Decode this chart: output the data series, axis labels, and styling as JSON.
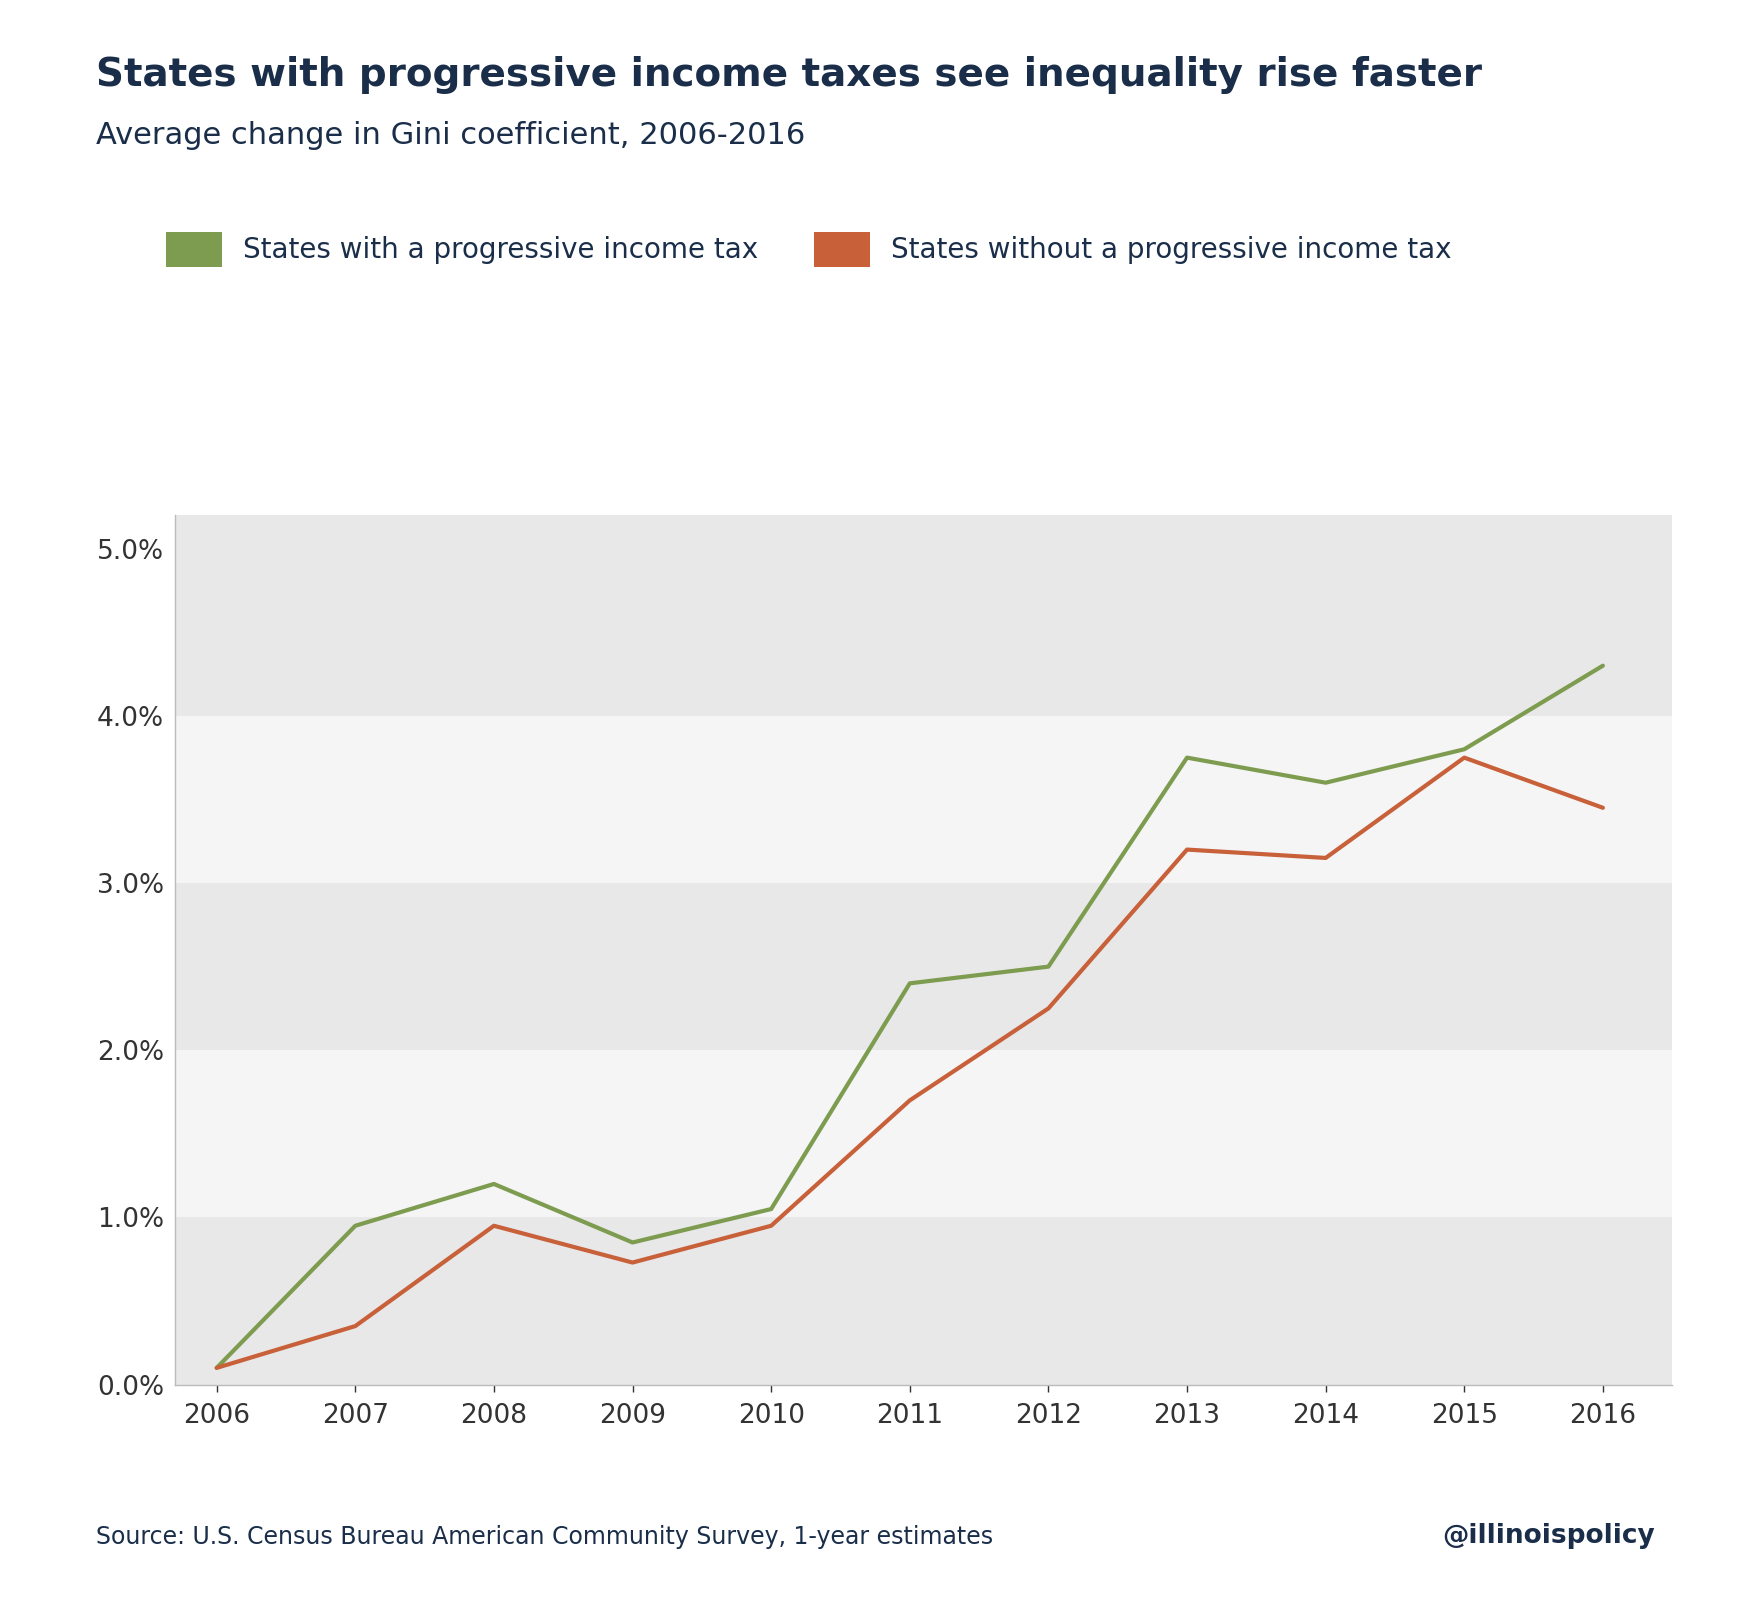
{
  "title": "States with progressive income taxes see inequality rise faster",
  "subtitle": "Average change in Gini coefficient, 2006-2016",
  "source": "Source: U.S. Census Bureau American Community Survey, 1-year estimates",
  "watermark": "@illinoispolicy",
  "years": [
    2006,
    2007,
    2008,
    2009,
    2010,
    2011,
    2012,
    2013,
    2014,
    2015,
    2016
  ],
  "progressive": [
    0.001,
    0.0095,
    0.012,
    0.0085,
    0.0105,
    0.024,
    0.025,
    0.0375,
    0.036,
    0.038,
    0.043
  ],
  "non_progressive": [
    0.001,
    0.0035,
    0.0095,
    0.0073,
    0.0095,
    0.017,
    0.0225,
    0.032,
    0.0315,
    0.0375,
    0.0345
  ],
  "progressive_color": "#7d9c50",
  "non_progressive_color": "#c8603a",
  "title_color": "#1a2e4a",
  "subtitle_color": "#1a2e4a",
  "source_color": "#1a2e4a",
  "axis_color": "#333333",
  "background_color": "#ffffff",
  "band_color_dark": "#e8e8e8",
  "band_color_light": "#f5f5f5",
  "legend_label_progressive": "States with a progressive income tax",
  "legend_label_non_progressive": "States without a progressive income tax",
  "ylim": [
    0.0,
    0.052
  ],
  "yticks": [
    0.0,
    0.01,
    0.02,
    0.03,
    0.04,
    0.05
  ],
  "line_width": 3.0
}
